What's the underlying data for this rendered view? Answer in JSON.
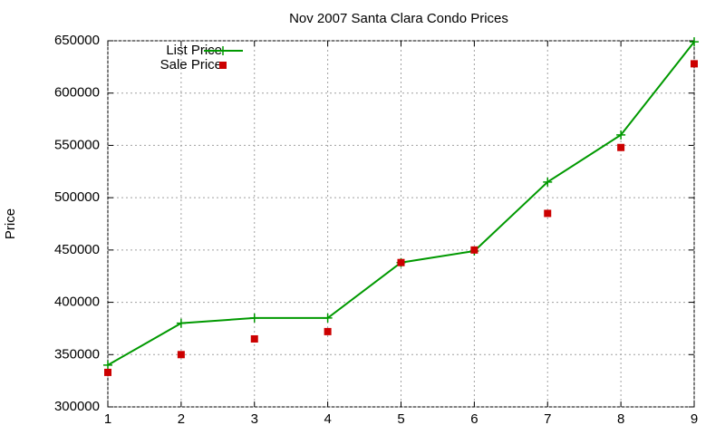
{
  "chart_data": {
    "type": "line",
    "title": "Nov 2007 Santa Clara Condo Prices",
    "ylabel": "Price",
    "x": [
      1,
      2,
      3,
      4,
      5,
      6,
      7,
      8,
      9
    ],
    "series": [
      {
        "name": "List Price",
        "color": "#009900",
        "mode": "lines+points",
        "marker": "plus",
        "values": [
          340000,
          380000,
          385000,
          385000,
          438000,
          449000,
          515000,
          560000,
          649000
        ]
      },
      {
        "name": "Sale Price",
        "color": "#cc0000",
        "mode": "points",
        "marker": "square",
        "values": [
          333000,
          350000,
          365000,
          372000,
          438000,
          450000,
          485000,
          548000,
          628000
        ]
      }
    ],
    "xlim": [
      1,
      9
    ],
    "xticks": [
      1,
      2,
      3,
      4,
      5,
      6,
      7,
      8,
      9
    ],
    "ylim": [
      300000,
      650000
    ],
    "yticks": [
      300000,
      350000,
      400000,
      450000,
      500000,
      550000,
      600000,
      650000
    ],
    "grid": true,
    "legend": "top-left"
  }
}
